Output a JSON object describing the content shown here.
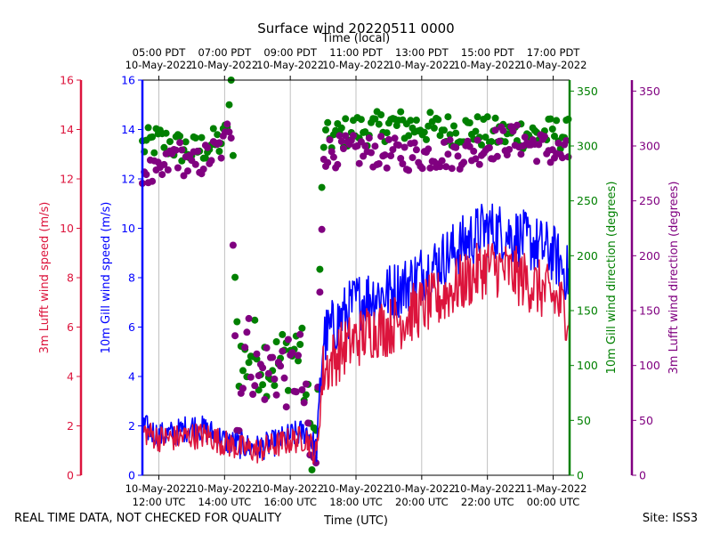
{
  "chart_data": {
    "type": "scatter+line",
    "title": "Surface wind 20220511 0000",
    "top_axis_label": "Time (local)",
    "bottom_axis_label": "Time (UTC)",
    "x_range_hours_utc": [
      11.5,
      24.5
    ],
    "top_ticks": [
      {
        "h": 12,
        "line1": "05:00 PDT",
        "line2": "10-May-2022"
      },
      {
        "h": 14,
        "line1": "07:00 PDT",
        "line2": "10-May-2022"
      },
      {
        "h": 16,
        "line1": "09:00 PDT",
        "line2": "10-May-2022"
      },
      {
        "h": 18,
        "line1": "11:00 PDT",
        "line2": "10-May-2022"
      },
      {
        "h": 20,
        "line1": "13:00 PDT",
        "line2": "10-May-2022"
      },
      {
        "h": 22,
        "line1": "15:00 PDT",
        "line2": "10-May-2022"
      },
      {
        "h": 24,
        "line1": "17:00 PDT",
        "line2": "10-May-2022"
      }
    ],
    "bottom_ticks": [
      {
        "h": 12,
        "line1": "10-May-2022",
        "line2": "12:00 UTC"
      },
      {
        "h": 14,
        "line1": "10-May-2022",
        "line2": "14:00 UTC"
      },
      {
        "h": 16,
        "line1": "10-May-2022",
        "line2": "16:00 UTC"
      },
      {
        "h": 18,
        "line1": "10-May-2022",
        "line2": "18:00 UTC"
      },
      {
        "h": 20,
        "line1": "10-May-2022",
        "line2": "20:00 UTC"
      },
      {
        "h": 22,
        "line1": "10-May-2022",
        "line2": "22:00 UTC"
      },
      {
        "h": 24,
        "line1": "11-May-2022",
        "line2": "00:00 UTC"
      }
    ],
    "grid": "vertical at each x tick",
    "axes": {
      "lufft_speed": {
        "label": "3m Lufft wind speed (m/s)",
        "range": [
          0,
          16
        ],
        "ticks": [
          0,
          2,
          4,
          6,
          8,
          10,
          12,
          14,
          16
        ],
        "color": "#dc143c",
        "side": "left-outer"
      },
      "gill_speed": {
        "label": "10m Gill wind speed (m/s)",
        "range": [
          0,
          16
        ],
        "ticks": [
          0,
          2,
          4,
          6,
          8,
          10,
          12,
          14,
          16
        ],
        "color": "#0000ff",
        "side": "left"
      },
      "gill_dir": {
        "label": "10m Gill wind direction (degrees)",
        "range": [
          0,
          360
        ],
        "ticks": [
          0,
          50,
          100,
          150,
          200,
          250,
          300,
          350
        ],
        "color": "#008000",
        "side": "right"
      },
      "lufft_dir": {
        "label": "3m Lufft wind direction (degrees)",
        "range": [
          0,
          360
        ],
        "ticks": [
          0,
          50,
          100,
          150,
          200,
          250,
          300,
          350
        ],
        "color": "#800080",
        "side": "right-outer"
      }
    },
    "series": [
      {
        "name": "10m Gill wind speed",
        "kind": "line",
        "axis": "gill_speed",
        "x_hours_utc": [
          11.5,
          12,
          12.5,
          13,
          13.5,
          14,
          14.5,
          15,
          15.5,
          16,
          16.5,
          16.8,
          17,
          17.5,
          18,
          18.5,
          19,
          19.5,
          20,
          20.5,
          21,
          21.5,
          22,
          22.5,
          23,
          23.5,
          24,
          24.5
        ],
        "values": [
          2.0,
          1.6,
          1.7,
          2.0,
          1.8,
          1.4,
          1.2,
          1.1,
          1.3,
          1.6,
          1.8,
          1.0,
          5.5,
          6.3,
          7.0,
          7.3,
          7.4,
          7.7,
          8.2,
          8.6,
          9.1,
          9.6,
          10.0,
          9.8,
          9.6,
          9.3,
          9.0,
          8.0
        ]
      },
      {
        "name": "3m Lufft wind speed",
        "kind": "line",
        "axis": "lufft_speed",
        "x_hours_utc": [
          11.5,
          12,
          12.5,
          13,
          13.5,
          14,
          14.5,
          15,
          15.5,
          16,
          16.5,
          16.8,
          17,
          17.5,
          18,
          18.5,
          19,
          19.5,
          20,
          20.5,
          21,
          21.5,
          22,
          22.5,
          23,
          23.5,
          24,
          24.5
        ],
        "values": [
          1.8,
          1.5,
          1.5,
          1.6,
          1.6,
          1.3,
          1.1,
          1.0,
          1.2,
          1.4,
          1.5,
          0.8,
          4.2,
          5.0,
          5.5,
          5.9,
          6.0,
          6.4,
          6.8,
          7.1,
          7.6,
          8.0,
          8.5,
          8.3,
          8.0,
          7.6,
          7.2,
          6.5
        ]
      },
      {
        "name": "10m Gill wind direction",
        "kind": "scatter",
        "axis": "gill_dir",
        "x_hours_utc": [
          11.5,
          12,
          12.5,
          13,
          13.5,
          14,
          14.2,
          14.4,
          14.6,
          14.8,
          15,
          15.5,
          16,
          16.3,
          16.6,
          16.8,
          17,
          17.5,
          18,
          18.5,
          19,
          19.5,
          20,
          20.5,
          21,
          21.5,
          22,
          22.5,
          23,
          23.5,
          24,
          24.5
        ],
        "values": [
          300,
          305,
          300,
          295,
          300,
          305,
          350,
          110,
          100,
          115,
          110,
          100,
          110,
          120,
          40,
          30,
          305,
          310,
          315,
          315,
          320,
          318,
          318,
          315,
          315,
          315,
          312,
          310,
          312,
          310,
          312,
          310
        ]
      },
      {
        "name": "3m Lufft wind direction",
        "kind": "scatter",
        "axis": "lufft_dir",
        "x_hours_utc": [
          11.5,
          12,
          12.5,
          13,
          13.5,
          14,
          14.2,
          14.4,
          14.6,
          14.8,
          15,
          15.5,
          16,
          16.3,
          16.6,
          16.8,
          17,
          17.5,
          18,
          18.5,
          19,
          19.5,
          20,
          20.5,
          21,
          21.5,
          22,
          22.5,
          23,
          23.5,
          24,
          24.5
        ],
        "values": [
          280,
          270,
          295,
          280,
          290,
          300,
          330,
          20,
          130,
          110,
          90,
          100,
          90,
          100,
          20,
          10,
          295,
          295,
          295,
          295,
          293,
          292,
          292,
          293,
          293,
          295,
          300,
          305,
          305,
          300,
          295,
          290
        ]
      }
    ]
  },
  "footer": {
    "left_note": "REAL TIME DATA, NOT CHECKED FOR QUALITY",
    "site": "Site: ISS3"
  }
}
